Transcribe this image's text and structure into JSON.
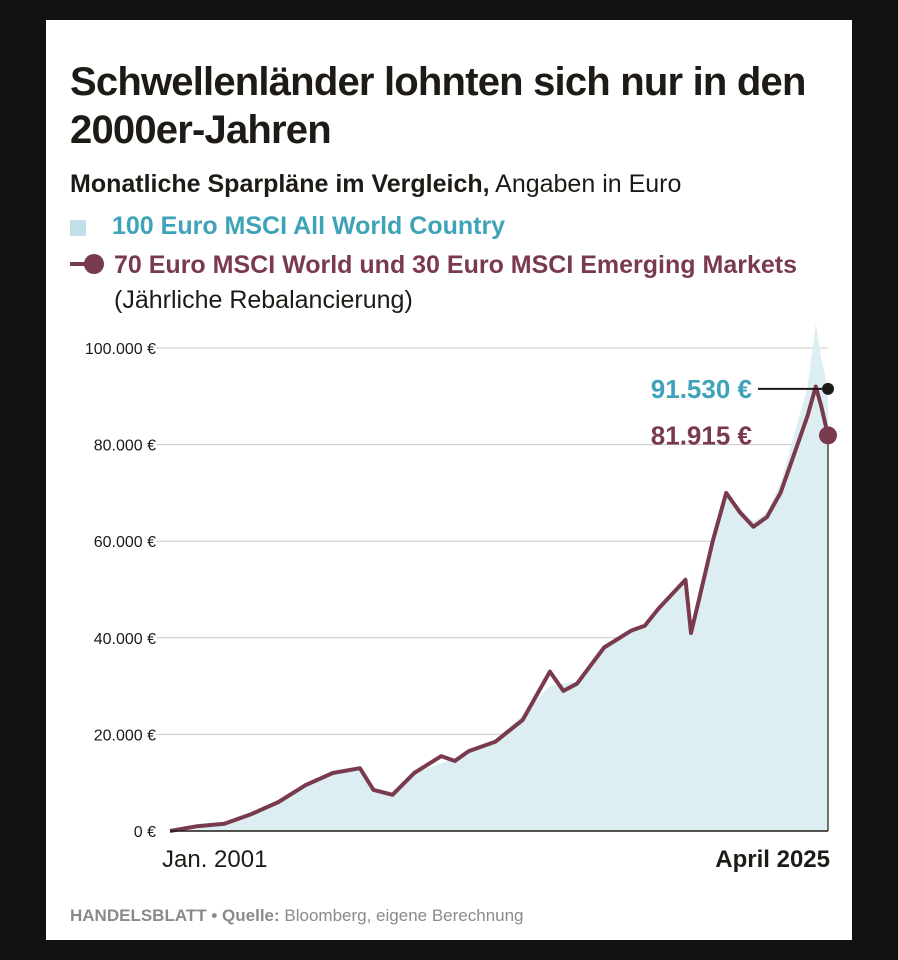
{
  "publisher": "HANDELSBLATT",
  "title": "Schwellenländer lohnten sich nur in den 2000er-Jahren",
  "subtitle_bold": "Monatliche Sparpläne im Vergleich,",
  "subtitle_plain": " Angaben in Euro",
  "legend": {
    "series1": "100 Euro MSCI All World Country",
    "series2_bold": "70 Euro MSCI World und 30 Euro MSCI Emerging Markets",
    "series2_plain": " (Jährliche Rebalancierung)"
  },
  "footer": {
    "source_label": "Quelle:",
    "source_text": " Bloomberg, eigene Berechnung",
    "separator": "•"
  },
  "colors": {
    "area": "#dceef2",
    "area_label": "#3ea3b8",
    "line": "#7a3a4e",
    "grid": "#c8c8c8",
    "text": "#1e1a16"
  },
  "chart_data": {
    "type": "line",
    "x_start_label": "Jan. 2001",
    "x_end_label": "April 2025",
    "ylim": [
      0,
      100000
    ],
    "yticks": [
      0,
      20000,
      40000,
      60000,
      80000,
      100000
    ],
    "ytick_labels": [
      "0 €",
      "20.000 €",
      "40.000 €",
      "60.000 €",
      "80.000 €",
      "100.000 €"
    ],
    "end_labels": {
      "series1": "91.530 €",
      "series2": "81.915 €"
    },
    "series": [
      {
        "name": "100 Euro MSCI All World Country",
        "style": "area",
        "x": [
          2001.0,
          2002.0,
          2003.0,
          2004.0,
          2005.0,
          2006.0,
          2007.0,
          2008.0,
          2008.5,
          2009.2,
          2010.0,
          2011.0,
          2012.0,
          2013.0,
          2014.0,
          2015.0,
          2016.0,
          2017.0,
          2018.0,
          2018.5,
          2019.0,
          2020.0,
          2020.2,
          2020.5,
          2021.0,
          2021.5,
          2022.0,
          2022.5,
          2023.0,
          2023.5,
          2024.0,
          2024.5,
          2024.8,
          2025.0,
          2025.25
        ],
        "values": [
          0,
          1000,
          1500,
          3500,
          6000,
          10000,
          12500,
          13000,
          8000,
          7500,
          12000,
          14000,
          16500,
          19000,
          24000,
          30000,
          31000,
          38000,
          41000,
          43000,
          46000,
          52000,
          42000,
          50000,
          61000,
          70000,
          67000,
          64000,
          66000,
          72000,
          82000,
          92000,
          105000,
          98000,
          91530
        ]
      },
      {
        "name": "70 Euro MSCI World und 30 Euro MSCI Emerging Markets",
        "style": "line",
        "x": [
          2001.0,
          2002.0,
          2003.0,
          2004.0,
          2005.0,
          2006.0,
          2007.0,
          2008.0,
          2008.5,
          2009.2,
          2010.0,
          2011.0,
          2011.5,
          2012.0,
          2013.0,
          2014.0,
          2015.0,
          2015.5,
          2016.0,
          2017.0,
          2018.0,
          2018.5,
          2019.0,
          2020.0,
          2020.2,
          2020.5,
          2021.0,
          2021.5,
          2022.0,
          2022.5,
          2023.0,
          2023.5,
          2024.0,
          2024.5,
          2024.8,
          2025.0,
          2025.25
        ],
        "values": [
          0,
          1000,
          1500,
          3500,
          6000,
          9500,
          12000,
          13000,
          8500,
          7500,
          12000,
          15500,
          14500,
          16500,
          18500,
          23000,
          33000,
          29000,
          30500,
          38000,
          41500,
          42500,
          46000,
          52000,
          41000,
          48000,
          60000,
          70000,
          66000,
          63000,
          65000,
          70000,
          78000,
          86000,
          92000,
          88000,
          81915
        ]
      }
    ]
  }
}
